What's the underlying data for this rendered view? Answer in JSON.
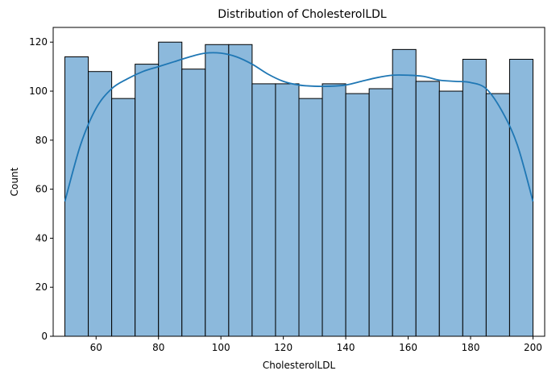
{
  "chart_data": {
    "type": "bar",
    "title": "Distribution of CholesterolLDL",
    "xlabel": "CholesterolLDL",
    "ylabel": "Count",
    "xlim": [
      46.25,
      203.75
    ],
    "ylim": [
      0,
      126
    ],
    "xticks": [
      60,
      80,
      100,
      120,
      140,
      160,
      180,
      200
    ],
    "yticks": [
      0,
      20,
      40,
      60,
      80,
      100,
      120
    ],
    "bin_edges": [
      50,
      57.5,
      65,
      72.5,
      80,
      87.5,
      95,
      102.5,
      110,
      117.5,
      125,
      132.5,
      140,
      147.5,
      155,
      162.5,
      170,
      177.5,
      185,
      192.5,
      200
    ],
    "counts": [
      114,
      108,
      97,
      111,
      120,
      109,
      119,
      119,
      103,
      103,
      97,
      103,
      99,
      101,
      117,
      104,
      100,
      113,
      99,
      113
    ],
    "kde": {
      "x": [
        50,
        55,
        60,
        65,
        70,
        75,
        80,
        85,
        90,
        95,
        100,
        105,
        110,
        115,
        120,
        125,
        130,
        135,
        140,
        145,
        150,
        155,
        160,
        165,
        170,
        175,
        180,
        185,
        190,
        195,
        200
      ],
      "y": [
        55,
        78,
        93,
        101,
        105,
        108,
        110,
        112,
        114,
        115.5,
        115.5,
        114,
        111,
        107,
        104,
        102.5,
        102,
        102,
        102.5,
        104,
        105.5,
        106.5,
        106.5,
        106,
        104.5,
        104,
        103.5,
        101,
        92,
        78,
        55
      ]
    },
    "grid": false,
    "colors": {
      "bar_fill": "#8cb9dc",
      "bar_edge": "#000000",
      "kde_line": "#1f77b4"
    }
  }
}
